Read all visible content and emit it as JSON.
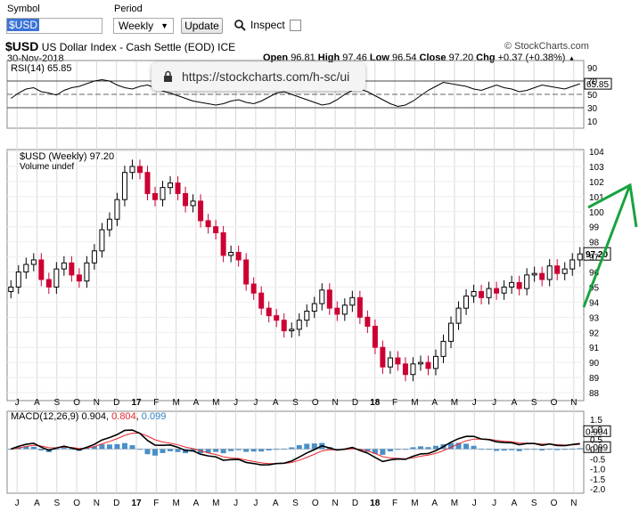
{
  "toolbar": {
    "symbol_label": "Symbol",
    "symbol_value": "$USD",
    "period_label": "Period",
    "period_value": "Weekly",
    "update_label": "Update",
    "inspect_label": "Inspect"
  },
  "header": {
    "title_symbol": "$USD",
    "title_desc": "US Dollar Index - Cash Settle (EOD)",
    "exchange": "ICE",
    "copyright": "© StockCharts.com",
    "date": "30-Nov-2018",
    "open_label": "Open",
    "open": "96.81",
    "high_label": "High",
    "high": "97.46",
    "low_label": "Low",
    "low": "96.54",
    "close_label": "Close",
    "close": "97.20",
    "chg_label": "Chg",
    "chg": "+0.37 (+0.38%)"
  },
  "url_tooltip": "https://stockcharts.com/h-sc/ui",
  "rsi": {
    "label": "RSI(14)",
    "value": "65.85",
    "ticks": [
      "90",
      "70",
      "50",
      "30",
      "10"
    ],
    "last": "65.85",
    "values": [
      44,
      52,
      58,
      60,
      54,
      52,
      49,
      56,
      60,
      62,
      66,
      70,
      72,
      70,
      64,
      60,
      58,
      62,
      64,
      60,
      55,
      52,
      48,
      44,
      40,
      38,
      36,
      34,
      36,
      40,
      42,
      38,
      36,
      40,
      46,
      52,
      54,
      50,
      46,
      42,
      38,
      34,
      36,
      42,
      50,
      56,
      58,
      54,
      48,
      42,
      36,
      32,
      34,
      40,
      48,
      56,
      62,
      68,
      66,
      64,
      62,
      58,
      56,
      60,
      64,
      60,
      58,
      54,
      56,
      60,
      64,
      62,
      60,
      58,
      62,
      65.85
    ]
  },
  "price": {
    "label": "$USD (Weekly) 97.20",
    "volume_label": "Volume undef",
    "ticks": [
      "104",
      "103",
      "102",
      "101",
      "100",
      "99",
      "98",
      "97",
      "96",
      "95",
      "94",
      "93",
      "92",
      "91",
      "90",
      "89",
      "88"
    ],
    "last": "97.20",
    "close": [
      95,
      96,
      96.5,
      96.8,
      95.5,
      95,
      96.2,
      96.6,
      95.8,
      95.4,
      96.6,
      97.4,
      98.8,
      99.5,
      100.8,
      102.6,
      103.0,
      102.6,
      101.2,
      100.8,
      101.6,
      101.9,
      101.2,
      100.4,
      100.7,
      99.4,
      99.0,
      98.6,
      97.1,
      97.3,
      96.8,
      95.2,
      94.6,
      93.6,
      93.1,
      92.8,
      92.1,
      92.2,
      92.8,
      93.4,
      93.9,
      94.8,
      93.6,
      93.2,
      93.8,
      94.3,
      93.0,
      92.4,
      91.0,
      89.7,
      90.3,
      89.9,
      89.2,
      89.9,
      90.0,
      89.6,
      90.4,
      91.4,
      92.6,
      93.6,
      94.4,
      94.7,
      94.3,
      94.9,
      94.6,
      95.0,
      95.3,
      94.9,
      95.8,
      95.9,
      95.5,
      96.4,
      95.9,
      96.2,
      96.8,
      97.2
    ]
  },
  "macd": {
    "label": "MACD(12,26,9)",
    "v1": "0.904",
    "v2": "0.804",
    "v3": "0.099",
    "ticks": [
      "1.5",
      "1.0",
      "0.5",
      "0.0",
      "-0.5",
      "-1.0",
      "-1.5",
      "-2.0"
    ],
    "last_macd": "0.904",
    "last_hist": "0.099"
  },
  "xaxis": [
    "J",
    "A",
    "S",
    "O",
    "N",
    "D",
    "17",
    "F",
    "M",
    "A",
    "M",
    "J",
    "J",
    "A",
    "S",
    "O",
    "N",
    "D",
    "18",
    "F",
    "M",
    "A",
    "M",
    "J",
    "J",
    "A",
    "S",
    "O",
    "N"
  ],
  "colors": {
    "up": "#000000",
    "down": "#cc0033",
    "signal": "#e8262b",
    "hist": "#4a8fc7",
    "arrow": "#19a341",
    "grid": "#d8d8d8"
  },
  "chart_data": {
    "type": "candlestick",
    "title": "$USD US Dollar Index - Cash Settle (EOD) ICE",
    "ylim": [
      88,
      104
    ],
    "rsi_ylim": [
      10,
      90
    ],
    "macd_ylim": [
      -2.0,
      1.5
    ]
  }
}
